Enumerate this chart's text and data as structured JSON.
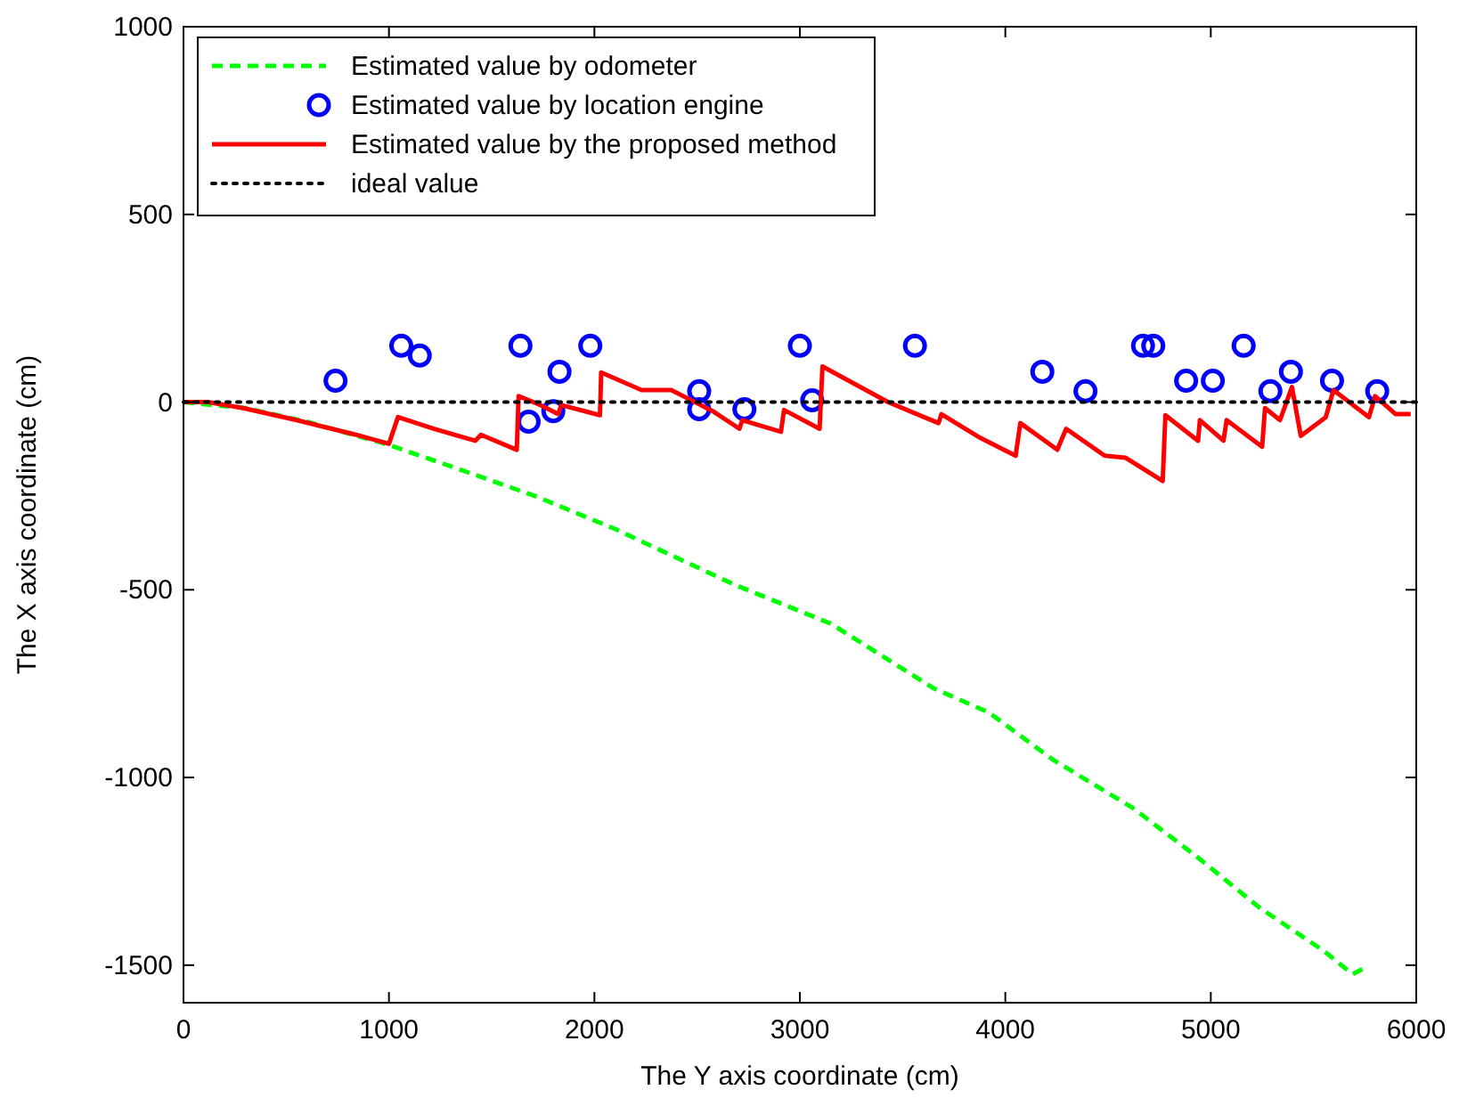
{
  "chart_data": {
    "type": "line",
    "xlabel": "The Y axis coordinate (cm)",
    "ylabel": "The X axis coordinate (cm)",
    "xlim": [
      0,
      6000
    ],
    "xticks": [
      0,
      1000,
      2000,
      3000,
      4000,
      5000,
      6000
    ],
    "ylim": [
      -1600,
      1000
    ],
    "yticks": [
      -1500,
      -1000,
      -500,
      0,
      500,
      1000
    ],
    "grid": false,
    "legend": "top left",
    "series": [
      {
        "name": "Estimated value by odometer",
        "color": "#00ff00",
        "line_style": "dashed",
        "marker": "none",
        "x": [
          0,
          300,
          600,
          1000,
          1400,
          1720,
          2100,
          2680,
          3150,
          3650,
          3920,
          4230,
          4620,
          4930,
          5240,
          5550,
          5690,
          5740
        ],
        "values": [
          0,
          -16,
          -52,
          -114,
          -190,
          -252,
          -338,
          -486,
          -590,
          -762,
          -827,
          -952,
          -1081,
          -1210,
          -1348,
          -1462,
          -1524,
          -1510
        ]
      },
      {
        "name": "Estimated value by location engine",
        "type": "scatter",
        "color": "#0000ff",
        "marker": "circle",
        "x": [
          740,
          1060,
          1150,
          1640,
          1680,
          1800,
          1830,
          1980,
          2510,
          2510,
          2730,
          3000,
          3060,
          3560,
          4180,
          4390,
          4670,
          4720,
          4880,
          5010,
          5160,
          5290,
          5390,
          5590,
          5810
        ],
        "values": [
          57,
          150,
          124,
          150,
          -52,
          -24,
          81,
          150,
          29,
          -19,
          -19,
          150,
          5,
          150,
          81,
          29,
          150,
          150,
          57,
          57,
          150,
          29,
          81,
          57,
          29
        ]
      },
      {
        "name": "Estimated value by the proposed method",
        "color": "#ff0000",
        "line_style": "solid",
        "marker": "none",
        "x": [
          0,
          120,
          290,
          550,
          840,
          1000,
          1044,
          1217,
          1420,
          1448,
          1622,
          1631,
          1738,
          1824,
          1839,
          2027,
          2033,
          2229,
          2374,
          2576,
          2706,
          2720,
          2908,
          2923,
          3096,
          3110,
          3429,
          3675,
          3689,
          3877,
          4050,
          4073,
          4253,
          4296,
          4484,
          4584,
          4766,
          4779,
          4938,
          4947,
          5062,
          5077,
          5250,
          5264,
          5337,
          5395,
          5438,
          5560,
          5597,
          5770,
          5800,
          5900,
          5973
        ],
        "values": [
          0,
          0,
          -16,
          -48,
          -87,
          -111,
          -40,
          -71,
          -103,
          -87,
          -127,
          16,
          -8,
          -32,
          -8,
          -35,
          79,
          32,
          32,
          -24,
          -71,
          -48,
          -79,
          -21,
          -71,
          95,
          0,
          -56,
          -32,
          -95,
          -143,
          -56,
          -127,
          -71,
          -143,
          -148,
          -210,
          -35,
          -103,
          -48,
          -103,
          -48,
          -119,
          -16,
          -48,
          40,
          -90,
          -40,
          32,
          -40,
          16,
          -32,
          -32
        ]
      },
      {
        "name": "ideal value",
        "color": "#000000",
        "line_style": "dotted",
        "marker": "none",
        "x": [
          0,
          6000
        ],
        "values": [
          0,
          0
        ]
      }
    ]
  }
}
